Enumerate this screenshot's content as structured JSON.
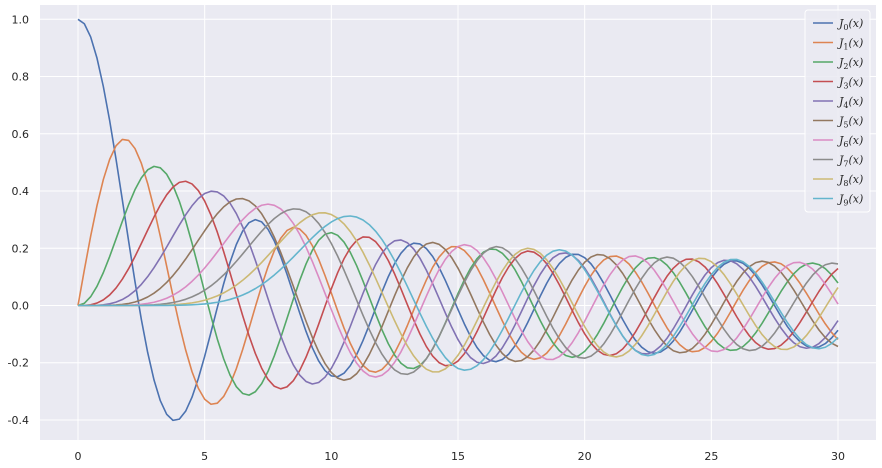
{
  "chart_data": {
    "type": "line",
    "title": "",
    "xlabel": "",
    "ylabel": "",
    "xlim": [
      -1.5,
      31.5
    ],
    "ylim": [
      -0.47,
      1.05
    ],
    "x_ticks": [
      0,
      5,
      10,
      15,
      20,
      25,
      30
    ],
    "x_tick_labels": [
      "0",
      "5",
      "10",
      "15",
      "20",
      "25",
      "30"
    ],
    "y_ticks": [
      -0.4,
      -0.2,
      0.0,
      0.2,
      0.4,
      0.6,
      0.8,
      1.0
    ],
    "y_tick_labels": [
      "-0.4",
      "-0.2",
      "0.0",
      "0.2",
      "0.4",
      "0.6",
      "0.8",
      "1.0"
    ],
    "grid": true,
    "legend_position": "top-right",
    "background": "#EAEAF2",
    "grid_color": "#FFFFFF",
    "x_sampling": {
      "start": 0,
      "end": 30,
      "points": 121
    },
    "series": [
      {
        "name": "J",
        "sub": "0",
        "order": 0,
        "color": "#4C72B0"
      },
      {
        "name": "J",
        "sub": "1",
        "order": 1,
        "color": "#DD8452"
      },
      {
        "name": "J",
        "sub": "2",
        "order": 2,
        "color": "#55A868"
      },
      {
        "name": "J",
        "sub": "3",
        "order": 3,
        "color": "#C44E52"
      },
      {
        "name": "J",
        "sub": "4",
        "order": 4,
        "color": "#8172B3"
      },
      {
        "name": "J",
        "sub": "5",
        "order": 5,
        "color": "#937860"
      },
      {
        "name": "J",
        "sub": "6",
        "order": 6,
        "color": "#DA8BC3"
      },
      {
        "name": "J",
        "sub": "7",
        "order": 7,
        "color": "#8C8C8C"
      },
      {
        "name": "J",
        "sub": "8",
        "order": 8,
        "color": "#CCB974"
      },
      {
        "name": "J",
        "sub": "9",
        "order": 9,
        "color": "#64B5CD"
      }
    ]
  }
}
